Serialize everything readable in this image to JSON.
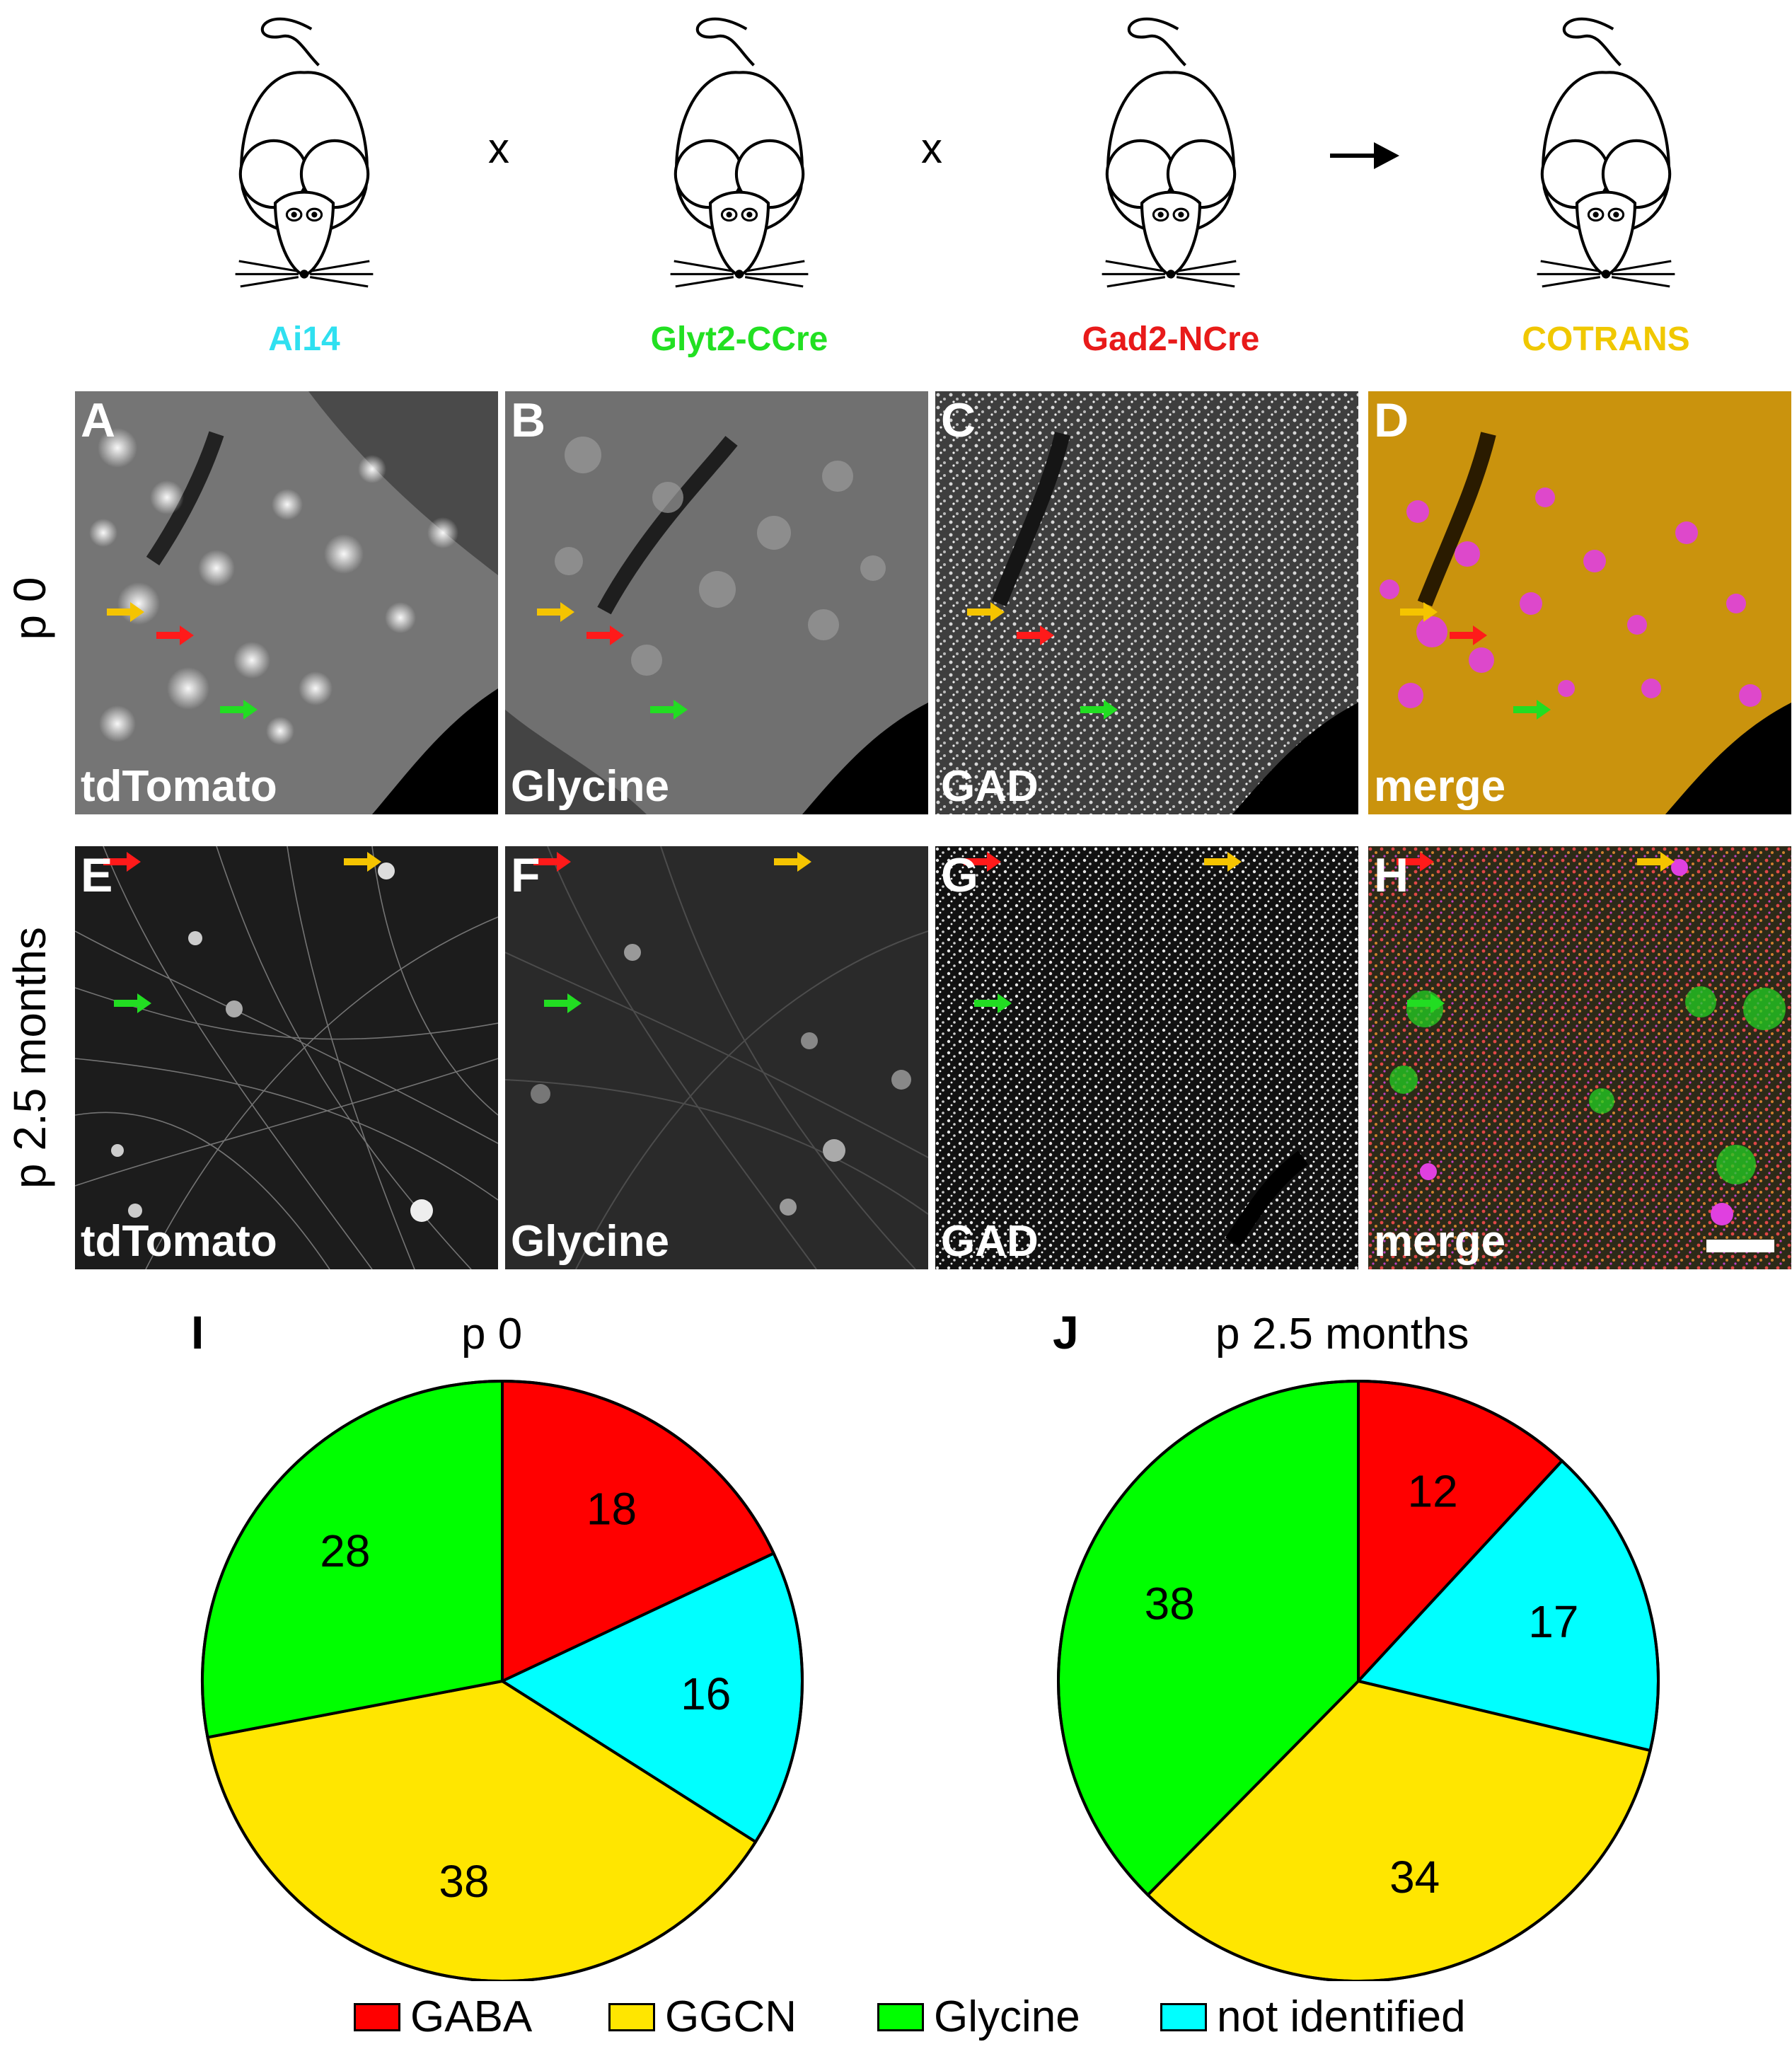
{
  "breeding": {
    "mice": [
      {
        "label": "Ai14",
        "color": "#2FE0F0"
      },
      {
        "label": "Glyt2-CCre",
        "color": "#22E022"
      },
      {
        "label": "Gad2-NCre",
        "color": "#E81A1A"
      },
      {
        "label": "COTRANS",
        "color": "#F0C800"
      }
    ],
    "operators": [
      "x",
      "x"
    ]
  },
  "rows": [
    {
      "label": "p 0"
    },
    {
      "label": "p 2.5 months"
    }
  ],
  "panels": [
    {
      "letter": "A",
      "name": "tdTomato"
    },
    {
      "letter": "B",
      "name": "Glycine"
    },
    {
      "letter": "C",
      "name": "GAD"
    },
    {
      "letter": "D",
      "name": "merge"
    },
    {
      "letter": "E",
      "name": "tdTomato"
    },
    {
      "letter": "F",
      "name": "Glycine"
    },
    {
      "letter": "G",
      "name": "GAD"
    },
    {
      "letter": "H",
      "name": "merge"
    }
  ],
  "chart_data": [
    {
      "type": "pie",
      "letter": "I",
      "title": "p 0",
      "categories": [
        "GABA",
        "not identified",
        "GGCN",
        "Glycine"
      ],
      "values": [
        18,
        16,
        38,
        28
      ],
      "colors": [
        "#FF0000",
        "#00FFFF",
        "#FFE600",
        "#00FF00"
      ]
    },
    {
      "type": "pie",
      "letter": "J",
      "title": "p 2.5 months",
      "categories": [
        "GABA",
        "not identified",
        "GGCN",
        "Glycine"
      ],
      "values": [
        12,
        17,
        34,
        38
      ],
      "colors": [
        "#FF0000",
        "#00FFFF",
        "#FFE600",
        "#00FF00"
      ]
    }
  ],
  "legend": [
    {
      "label": "GABA",
      "color": "#FF0000"
    },
    {
      "label": "GGCN",
      "color": "#FFE600"
    },
    {
      "label": "Glycine",
      "color": "#00FF00"
    },
    {
      "label": "not identified",
      "color": "#00FFFF"
    }
  ]
}
